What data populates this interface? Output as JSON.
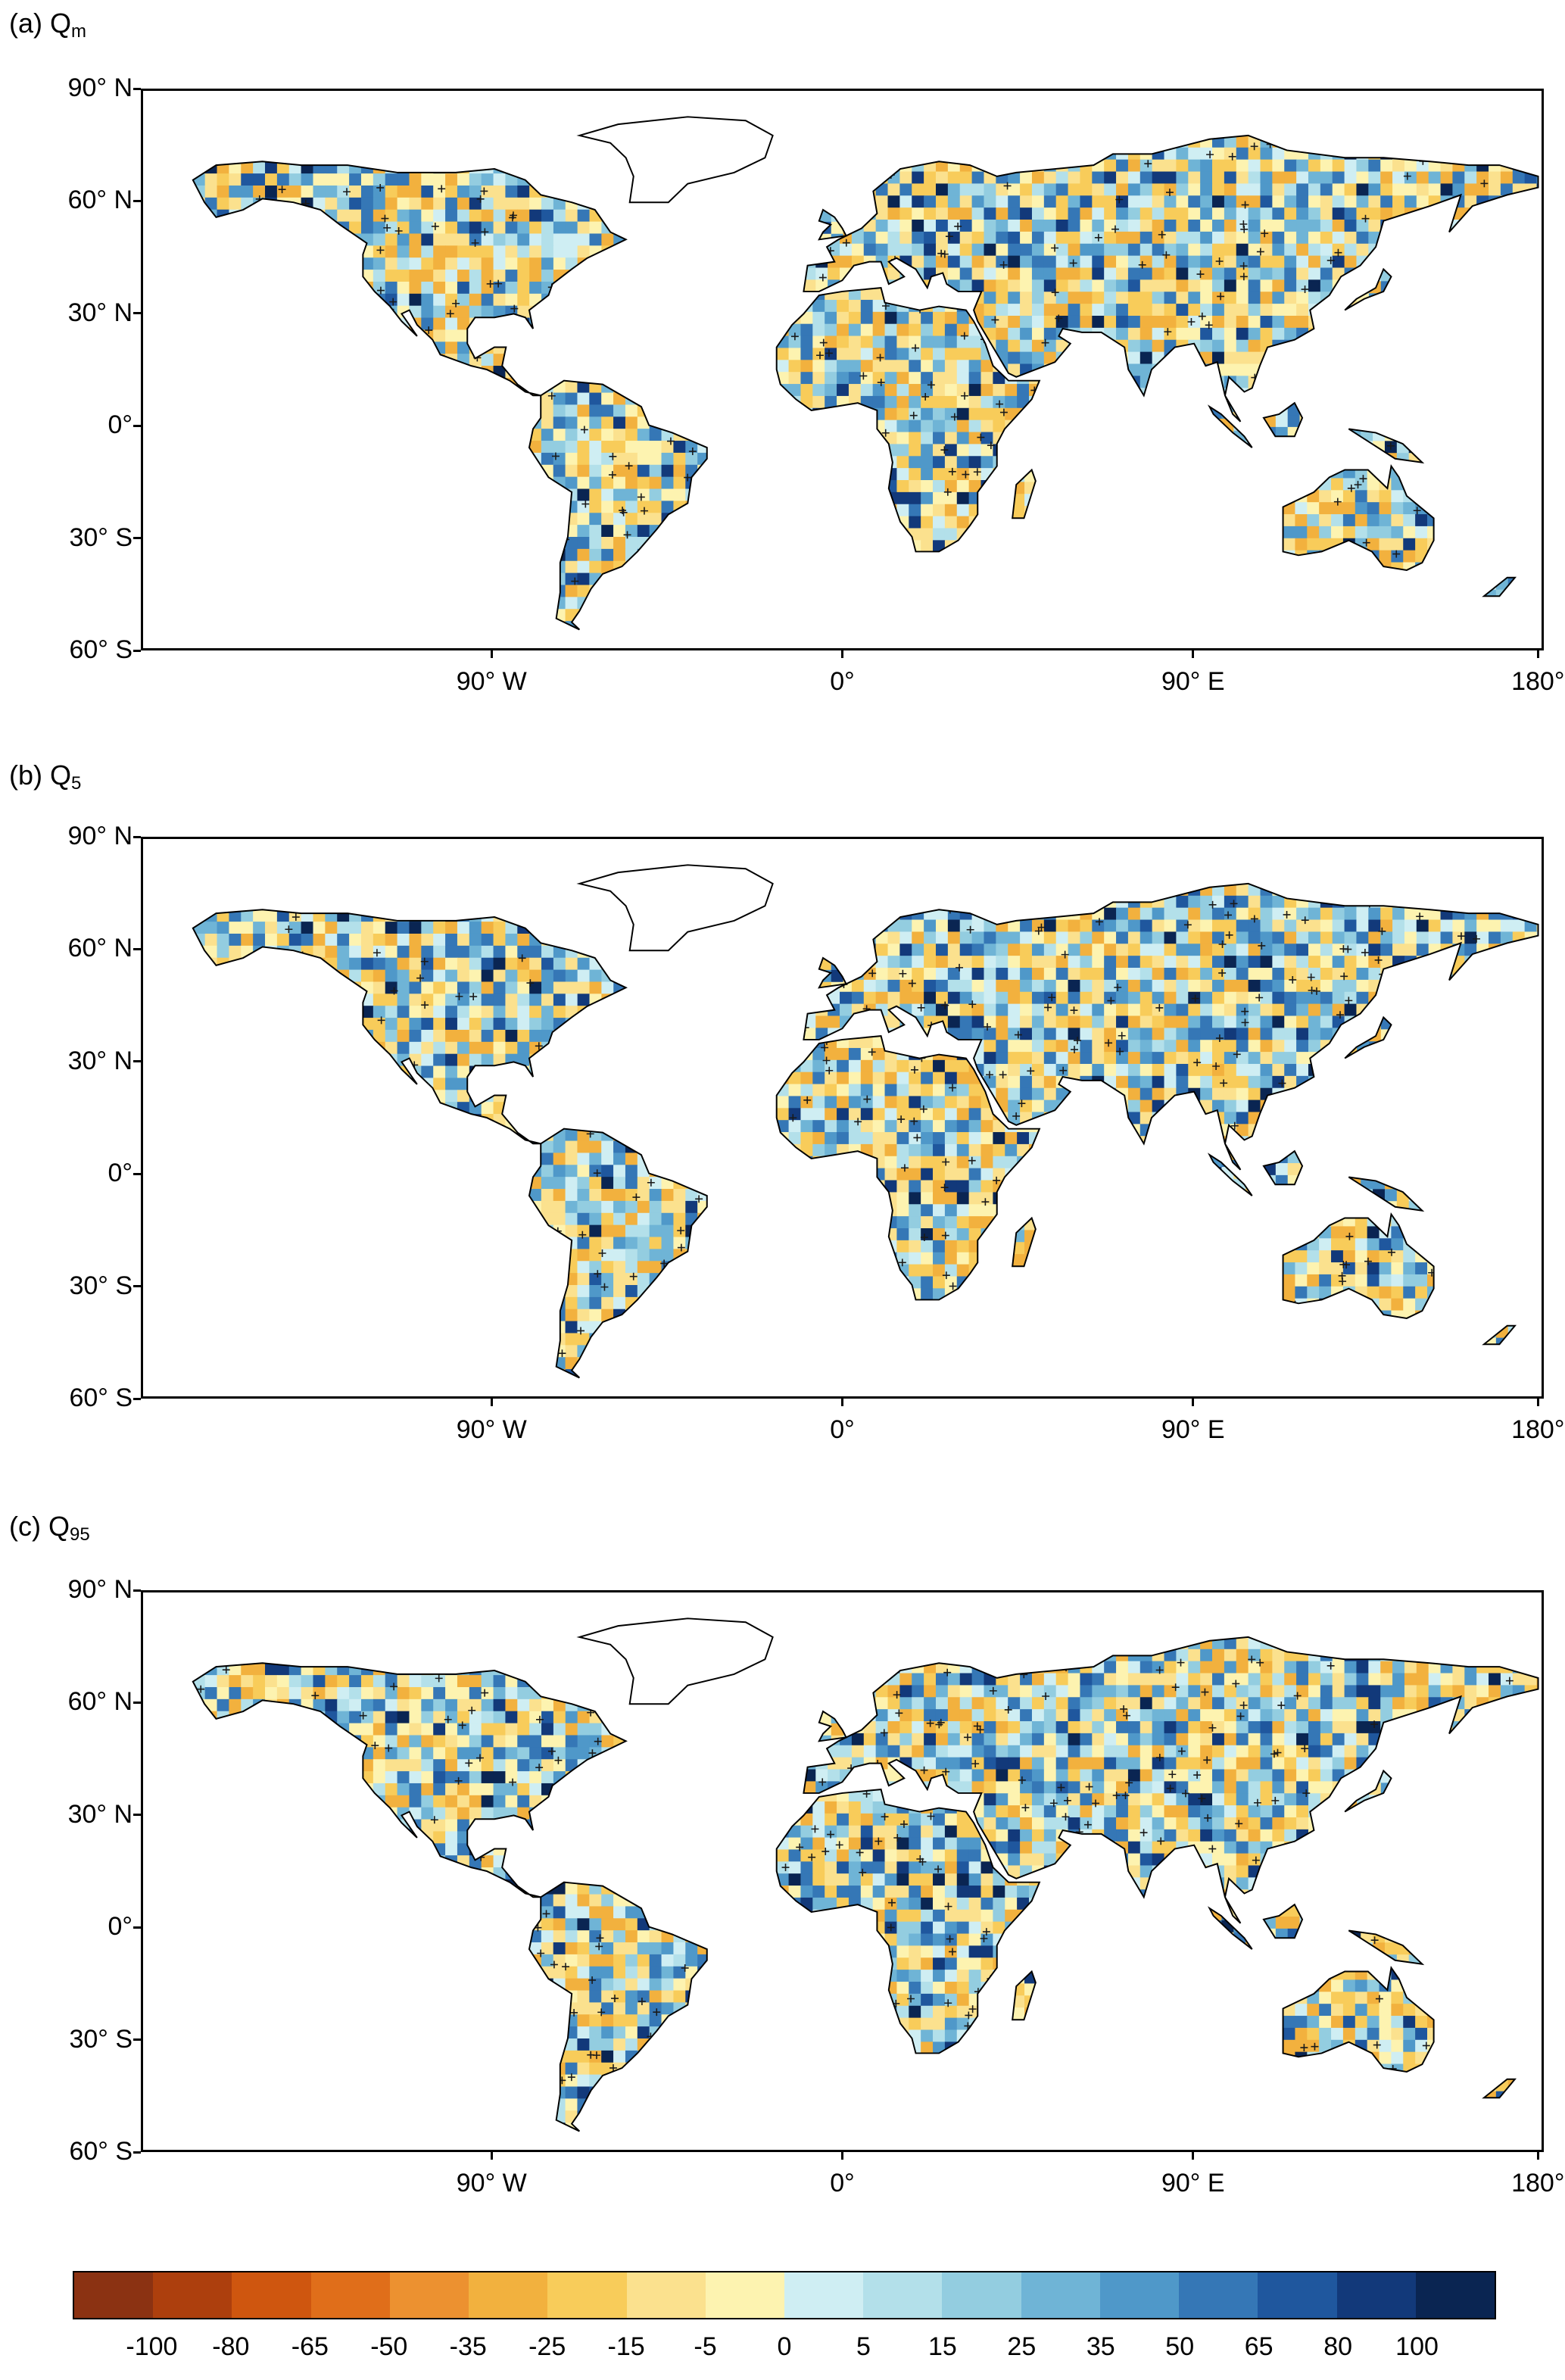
{
  "panels": [
    {
      "id": "a",
      "title_prefix": "(a) Q",
      "title_sub": "m"
    },
    {
      "id": "b",
      "title_prefix": "(b) Q",
      "title_sub": "5"
    },
    {
      "id": "c",
      "title_prefix": "(c) Q",
      "title_sub": "95"
    }
  ],
  "lat_labels": [
    "90° N",
    "60° N",
    "30° N",
    "0°",
    "30° S",
    "60° S"
  ],
  "lon_labels": [
    "90° W",
    "0°",
    "90° E",
    "180°"
  ],
  "colorbar": {
    "labels": [
      "-100",
      "-80",
      "-65",
      "-50",
      "-35",
      "-25",
      "-15",
      "-5",
      "0",
      "5",
      "15",
      "25",
      "35",
      "50",
      "65",
      "80",
      "100"
    ],
    "colors": [
      "#8b3212",
      "#ad3f0d",
      "#cf560f",
      "#e06e1a",
      "#ec9130",
      "#f2b13e",
      "#f8cc5a",
      "#fbe18e",
      "#fdf3b0",
      "#cfeef3",
      "#b3e0ea",
      "#93cde0",
      "#6fb4d6",
      "#4f98c9",
      "#3577b6",
      "#1f579e",
      "#12397a",
      "#0a2552"
    ]
  },
  "map_data": {
    "projection": "equirectangular",
    "lon_range": [
      -180,
      180
    ],
    "lat_range": [
      -60,
      90
    ],
    "variable_range": [
      -100,
      100
    ]
  }
}
